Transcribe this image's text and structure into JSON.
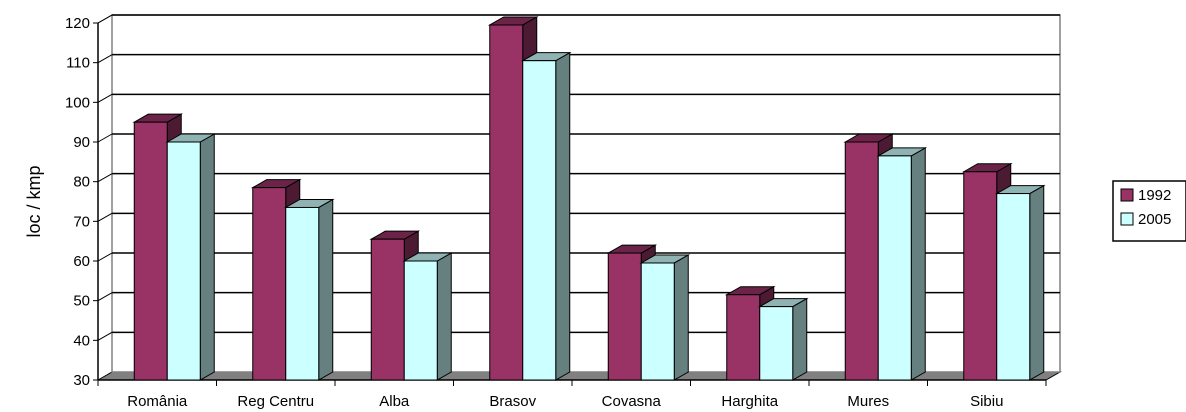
{
  "chart_data": {
    "type": "bar",
    "title": "",
    "xlabel": "",
    "ylabel": "loc / kmp",
    "ylim": [
      30,
      120
    ],
    "yticks": [
      30,
      40,
      50,
      60,
      70,
      80,
      90,
      100,
      110,
      120
    ],
    "grid": true,
    "legend_position": "right",
    "categories": [
      "România",
      "Reg Centru",
      "Alba",
      "Brasov",
      "Covasna",
      "Harghita",
      "Mures",
      "Sibiu"
    ],
    "series": [
      {
        "name": "1992",
        "values": [
          95,
          78.5,
          65.5,
          119.5,
          62,
          51.5,
          90,
          82.5
        ],
        "color": "#993366"
      },
      {
        "name": "2005",
        "values": [
          90,
          73.5,
          60,
          110.5,
          59.5,
          48.5,
          86.5,
          77
        ],
        "color": "#ccffff"
      }
    ]
  }
}
